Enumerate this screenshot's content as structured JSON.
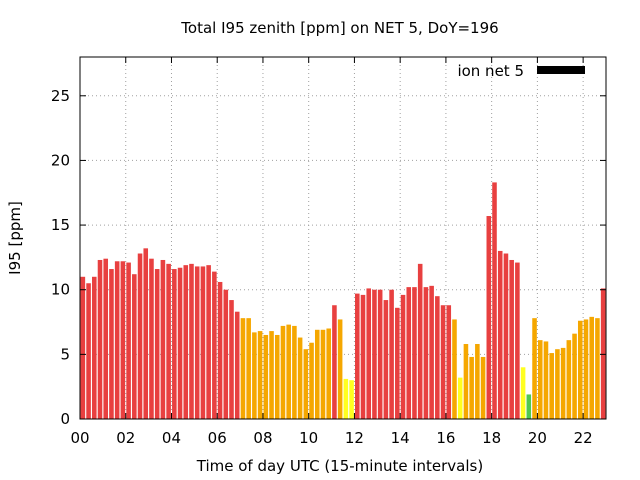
{
  "chart_data": {
    "type": "bar",
    "title": "Total I95 zenith [ppm] on NET 5, DoY=196",
    "xlabel": "Time of day UTC (15-minute intervals)",
    "ylabel": "I95 [ppm]",
    "legend": {
      "label": "ion net 5",
      "color": "#000000",
      "position": "top-right"
    },
    "xlim": [
      0,
      23.0
    ],
    "ylim": [
      0,
      28
    ],
    "grid": true,
    "x_ticks": [
      "00",
      "02",
      "04",
      "06",
      "08",
      "10",
      "12",
      "14",
      "16",
      "18",
      "20",
      "22"
    ],
    "x_tick_values": [
      0,
      2,
      4,
      6,
      8,
      10,
      12,
      14,
      16,
      18,
      20,
      22
    ],
    "y_ticks": [
      0,
      5,
      10,
      15,
      20,
      25
    ],
    "colors": {
      "red": "#e84040",
      "orange": "#f5a700",
      "yellow": "#ffff20",
      "green": "#50c850"
    },
    "bin_width_hours": 0.25,
    "x": [
      0.0,
      0.25,
      0.5,
      0.75,
      1.0,
      1.25,
      1.5,
      1.75,
      2.0,
      2.25,
      2.5,
      2.75,
      3.0,
      3.25,
      3.5,
      3.75,
      4.0,
      4.25,
      4.5,
      4.75,
      5.0,
      5.25,
      5.5,
      5.75,
      6.0,
      6.25,
      6.5,
      6.75,
      7.0,
      7.25,
      7.5,
      7.75,
      8.0,
      8.25,
      8.5,
      8.75,
      9.0,
      9.25,
      9.5,
      9.75,
      10.0,
      10.25,
      10.5,
      10.75,
      11.0,
      11.25,
      11.5,
      11.75,
      12.0,
      12.25,
      12.5,
      12.75,
      13.0,
      13.25,
      13.5,
      13.75,
      14.0,
      14.25,
      14.5,
      14.75,
      15.0,
      15.25,
      15.5,
      15.75,
      16.0,
      16.25,
      16.5,
      16.75,
      17.0,
      17.25,
      17.5,
      17.75,
      18.0,
      18.25,
      18.5,
      18.75,
      19.0,
      19.25,
      19.5,
      19.75,
      20.0,
      20.25,
      20.5,
      20.75,
      21.0,
      21.25,
      21.5,
      21.75,
      22.0,
      22.25,
      22.5,
      22.75
    ],
    "values": [
      11.0,
      10.5,
      11.0,
      12.3,
      12.4,
      11.6,
      12.2,
      12.2,
      12.1,
      11.2,
      12.8,
      13.2,
      12.4,
      11.6,
      12.3,
      12.0,
      11.6,
      11.7,
      11.9,
      12.0,
      11.8,
      11.8,
      11.9,
      11.4,
      10.6,
      10.0,
      9.2,
      8.3,
      7.8,
      7.8,
      6.7,
      6.8,
      6.5,
      6.8,
      6.5,
      7.2,
      7.3,
      7.2,
      6.3,
      5.4,
      5.9,
      6.9,
      6.9,
      7.0,
      8.8,
      7.7,
      3.1,
      3.0,
      9.7,
      9.6,
      10.1,
      10.0,
      10.0,
      9.2,
      10.0,
      8.6,
      9.6,
      10.2,
      10.2,
      12.0,
      10.2,
      10.3,
      9.5,
      8.8,
      8.8,
      7.7,
      3.2,
      5.8,
      4.8,
      5.8,
      4.8,
      15.7,
      18.3,
      13.0,
      12.8,
      12.3,
      12.1,
      4.0,
      1.9,
      7.8,
      6.1,
      6.0,
      5.1,
      5.4,
      5.5,
      6.1,
      6.6,
      7.6,
      7.7,
      7.9,
      7.8,
      10.1
    ],
    "bar_colors": [
      "red",
      "red",
      "red",
      "red",
      "red",
      "red",
      "red",
      "red",
      "red",
      "red",
      "red",
      "red",
      "red",
      "red",
      "red",
      "red",
      "red",
      "red",
      "red",
      "red",
      "red",
      "red",
      "red",
      "red",
      "red",
      "red",
      "red",
      "red",
      "orange",
      "orange",
      "orange",
      "orange",
      "orange",
      "orange",
      "orange",
      "orange",
      "orange",
      "orange",
      "orange",
      "orange",
      "orange",
      "orange",
      "orange",
      "orange",
      "red",
      "orange",
      "yellow",
      "yellow",
      "red",
      "red",
      "red",
      "red",
      "red",
      "red",
      "red",
      "red",
      "red",
      "red",
      "red",
      "red",
      "red",
      "red",
      "red",
      "red",
      "red",
      "orange",
      "yellow",
      "orange",
      "orange",
      "orange",
      "orange",
      "red",
      "red",
      "red",
      "red",
      "red",
      "red",
      "yellow",
      "green",
      "orange",
      "orange",
      "orange",
      "orange",
      "orange",
      "orange",
      "orange",
      "orange",
      "orange",
      "orange",
      "orange",
      "orange",
      "red"
    ]
  }
}
